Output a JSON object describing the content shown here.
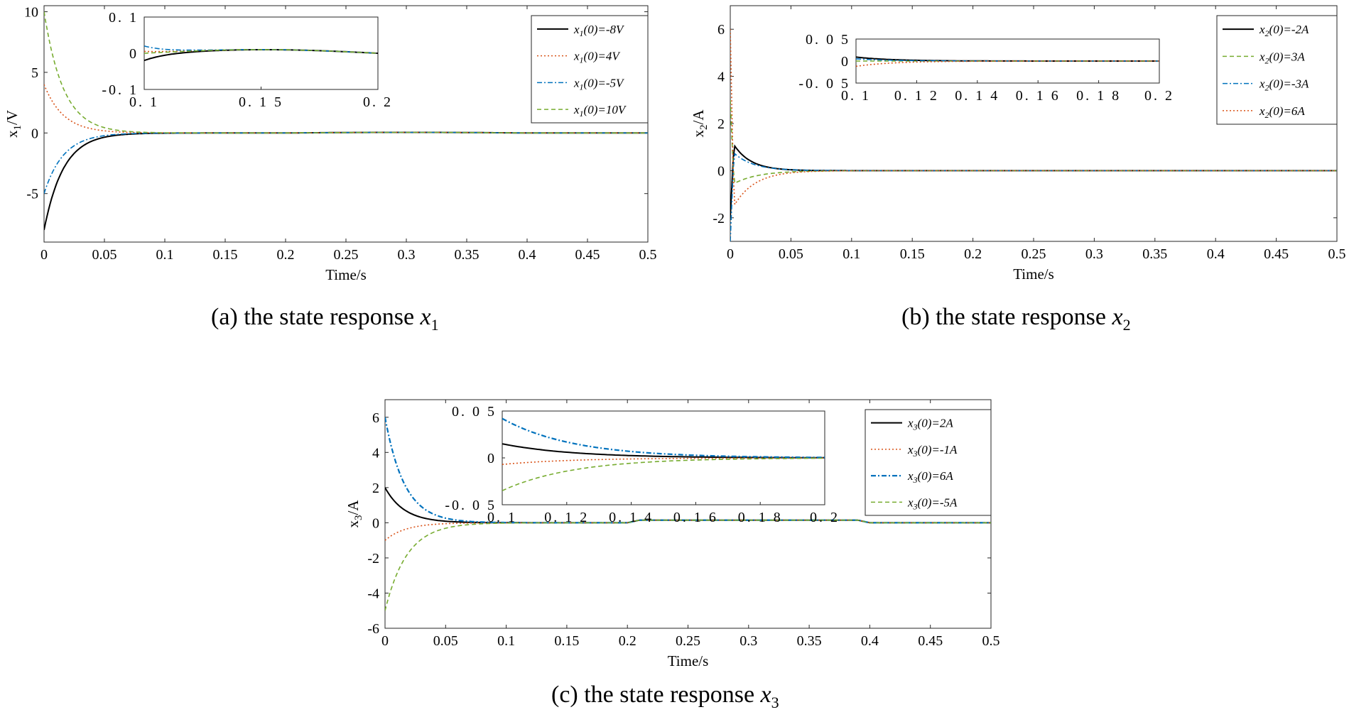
{
  "figure": {
    "captions": [
      {
        "prefix": "(a) the state response ",
        "var": "x",
        "sub": "1"
      },
      {
        "prefix": "(b) the state response ",
        "var": "x",
        "sub": "2"
      },
      {
        "prefix": "(c) the state response ",
        "var": "x",
        "sub": "3"
      }
    ]
  },
  "chart_data": [
    {
      "id": "a",
      "type": "line",
      "xlabel": "Time/s",
      "ylabel_main": "x",
      "ylabel_sub": "1",
      "ylabel_unit": "/V",
      "xlim": [
        0,
        0.5
      ],
      "ylim": [
        -9,
        10.5
      ],
      "xticks": [
        "0",
        "0.05",
        "0.1",
        "0.15",
        "0.2",
        "0.25",
        "0.3",
        "0.35",
        "0.4",
        "0.45",
        "0.5"
      ],
      "yticks": [
        {
          "v": -5,
          "label": "-5"
        },
        {
          "v": 0,
          "label": "0"
        },
        {
          "v": 5,
          "label": "5"
        },
        {
          "v": 10,
          "label": "10"
        }
      ],
      "legend_position": "top-right",
      "series": [
        {
          "name": "-8V",
          "prefix": "x",
          "sub": "1",
          "mid": "(0)=",
          "initial": -8,
          "tau": 0.016,
          "color": "#000000",
          "dash": "none",
          "width": 2
        },
        {
          "name": "4V",
          "prefix": "x",
          "sub": "1",
          "mid": "(0)=",
          "initial": 4,
          "tau": 0.016,
          "color": "#d95319",
          "dash": "2 3",
          "width": 1.6
        },
        {
          "name": "-5V",
          "prefix": "x",
          "sub": "1",
          "mid": "(0)=",
          "initial": -5,
          "tau": 0.016,
          "color": "#0072bd",
          "dash": "7 3 2 3",
          "width": 1.6
        },
        {
          "name": "10V",
          "prefix": "x",
          "sub": "1",
          "mid": "(0)=",
          "initial": 10,
          "tau": 0.016,
          "color": "#77ac30",
          "dash": "6 4",
          "width": 1.6
        }
      ],
      "inset": {
        "xlim": [
          0.1,
          0.2
        ],
        "ylim": [
          -0.1,
          0.1
        ],
        "xticks": [
          {
            "v": 0.1,
            "label": "0.1"
          },
          {
            "v": 0.15,
            "label": "0.15"
          },
          {
            "v": 0.2,
            "label": "0.2"
          }
        ],
        "yticks": [
          {
            "v": -0.1,
            "label": "-0.1"
          },
          {
            "v": 0,
            "label": "0"
          },
          {
            "v": 0.1,
            "label": "0.1"
          }
        ]
      }
    },
    {
      "id": "b",
      "type": "line",
      "xlabel": "Time/s",
      "ylabel_main": "x",
      "ylabel_sub": "2",
      "ylabel_unit": "/A",
      "xlim": [
        0,
        0.5
      ],
      "ylim": [
        -3,
        7
      ],
      "xticks": [
        "0",
        "0.05",
        "0.1",
        "0.15",
        "0.2",
        "0.25",
        "0.3",
        "0.35",
        "0.4",
        "0.45",
        "0.5"
      ],
      "yticks": [
        {
          "v": -2,
          "label": "-2"
        },
        {
          "v": 0,
          "label": "0"
        },
        {
          "v": 2,
          "label": "2"
        },
        {
          "v": 4,
          "label": "4"
        },
        {
          "v": 6,
          "label": "6"
        }
      ],
      "legend_position": "top-right",
      "series": [
        {
          "name": "-2A",
          "prefix": "x",
          "sub": "2",
          "mid": "(0)=",
          "initial": -2,
          "peak": 1.1,
          "tau": 0.014,
          "color": "#000000",
          "dash": "none",
          "width": 2
        },
        {
          "name": "3A",
          "prefix": "x",
          "sub": "2",
          "mid": "(0)=",
          "initial": 3,
          "peak": -0.55,
          "tau": 0.02,
          "color": "#77ac30",
          "dash": "6 4",
          "width": 1.6
        },
        {
          "name": "-3A",
          "prefix": "x",
          "sub": "2",
          "mid": "(0)=",
          "initial": -3,
          "peak": 0.75,
          "tau": 0.016,
          "color": "#0072bd",
          "dash": "7 3 2 3",
          "width": 1.6
        },
        {
          "name": "6A",
          "prefix": "x",
          "sub": "2",
          "mid": "(0)=",
          "initial": 6,
          "peak": -1.5,
          "tau": 0.017,
          "color": "#d95319",
          "dash": "2 3",
          "width": 1.6
        }
      ],
      "inset": {
        "xlim": [
          0.1,
          0.2
        ],
        "ylim": [
          -0.05,
          0.05
        ],
        "xticks": [
          {
            "v": 0.1,
            "label": "0.1"
          },
          {
            "v": 0.12,
            "label": "0.12"
          },
          {
            "v": 0.14,
            "label": "0.14"
          },
          {
            "v": 0.16,
            "label": "0.16"
          },
          {
            "v": 0.18,
            "label": "0.18"
          },
          {
            "v": 0.2,
            "label": "0.2"
          }
        ],
        "yticks": [
          {
            "v": -0.05,
            "label": "-0.05"
          },
          {
            "v": 0,
            "label": "0"
          },
          {
            "v": 0.05,
            "label": "0.05"
          }
        ]
      }
    },
    {
      "id": "c",
      "type": "line",
      "xlabel": "Time/s",
      "ylabel_main": "x",
      "ylabel_sub": "3",
      "ylabel_unit": "/A",
      "xlim": [
        0,
        0.5
      ],
      "ylim": [
        -6,
        7
      ],
      "xticks": [
        "0",
        "0.05",
        "0.1",
        "0.15",
        "0.2",
        "0.25",
        "0.3",
        "0.35",
        "0.4",
        "0.45",
        "0.5"
      ],
      "yticks": [
        {
          "v": -6,
          "label": "-6"
        },
        {
          "v": -4,
          "label": "-4"
        },
        {
          "v": -2,
          "label": "-2"
        },
        {
          "v": 0,
          "label": "0"
        },
        {
          "v": 2,
          "label": "2"
        },
        {
          "v": 4,
          "label": "4"
        },
        {
          "v": 6,
          "label": "6"
        }
      ],
      "legend_position": "top-right",
      "series": [
        {
          "name": "2A",
          "prefix": "x",
          "sub": "3",
          "mid": "(0)=",
          "initial": 2,
          "tau": 0.016,
          "color": "#000000",
          "dash": "none",
          "width": 2
        },
        {
          "name": "-1A",
          "prefix": "x",
          "sub": "3",
          "mid": "(0)=",
          "initial": -1,
          "tau": 0.017,
          "color": "#d95319",
          "dash": "2 3",
          "width": 1.6
        },
        {
          "name": "6A",
          "prefix": "x",
          "sub": "3",
          "mid": "(0)=",
          "initial": 6,
          "tau": 0.016,
          "color": "#0072bd",
          "dash": "7 3 2 3",
          "width": 2.2
        },
        {
          "name": "-5A",
          "prefix": "x",
          "sub": "3",
          "mid": "(0)=",
          "initial": -5,
          "tau": 0.018,
          "color": "#77ac30",
          "dash": "6 4",
          "width": 1.6
        }
      ],
      "inset": {
        "xlim": [
          0.1,
          0.2
        ],
        "ylim": [
          -0.05,
          0.05
        ],
        "xticks": [
          {
            "v": 0.1,
            "label": "0.1"
          },
          {
            "v": 0.12,
            "label": "0.12"
          },
          {
            "v": 0.14,
            "label": "0.14"
          },
          {
            "v": 0.16,
            "label": "0.16"
          },
          {
            "v": 0.18,
            "label": "0.18"
          },
          {
            "v": 0.2,
            "label": "0.2"
          }
        ],
        "yticks": [
          {
            "v": -0.05,
            "label": "-0.05"
          },
          {
            "v": 0,
            "label": "0"
          },
          {
            "v": 0.05,
            "label": "0.05"
          }
        ]
      }
    }
  ]
}
